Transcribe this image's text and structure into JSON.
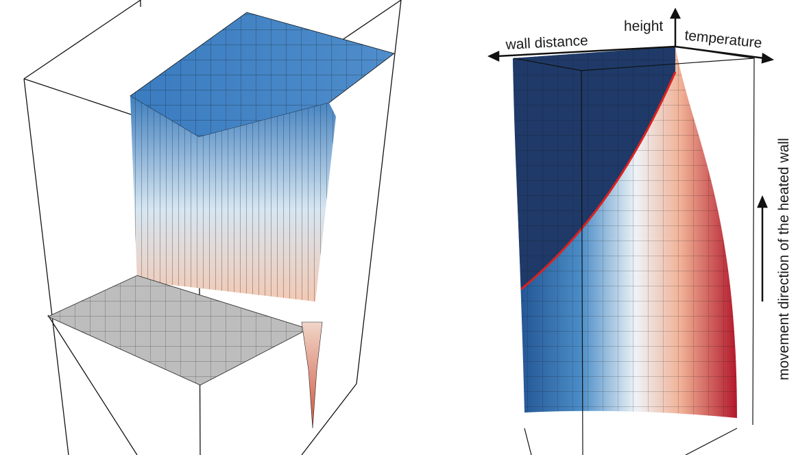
{
  "right_panel": {
    "axis_labels": {
      "height": "height",
      "wall_distance": "wall distance",
      "temperature": "temperature"
    },
    "side_label": "movement direction of the heated wall"
  },
  "colors": {
    "cold": "#1f3a68",
    "mid": "#f4f4f4",
    "hot": "#b2182b",
    "isoline": "#e0201e",
    "grey_surface": "#b8b8b8"
  }
}
